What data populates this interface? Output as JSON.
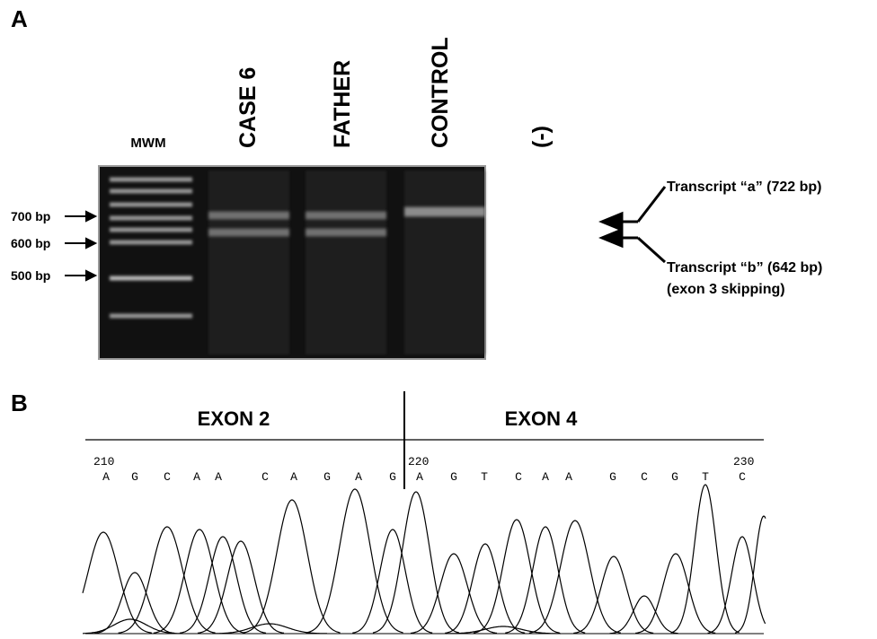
{
  "panel_a": {
    "label": "A",
    "lanes": [
      "MWM",
      "CASE 6",
      "FATHER",
      "CONTROL",
      "(-)"
    ],
    "markers": [
      "700 bp",
      "600 bp",
      "500 bp"
    ],
    "transcripts": [
      "Transcript “a” (722 bp)",
      "Transcript “b” (642 bp)",
      "(exon 3 skipping)"
    ]
  },
  "panel_b": {
    "label": "B",
    "exons": [
      "EXON 2",
      "EXON 4"
    ],
    "positions": [
      "210",
      "220",
      "230"
    ],
    "bases": [
      "A",
      "G",
      "C",
      "A",
      "A",
      "C",
      "A",
      "G",
      "A",
      "G",
      "A",
      "G",
      "T",
      "C",
      "A",
      "A",
      "G",
      "C",
      "G",
      "T",
      "C"
    ]
  }
}
